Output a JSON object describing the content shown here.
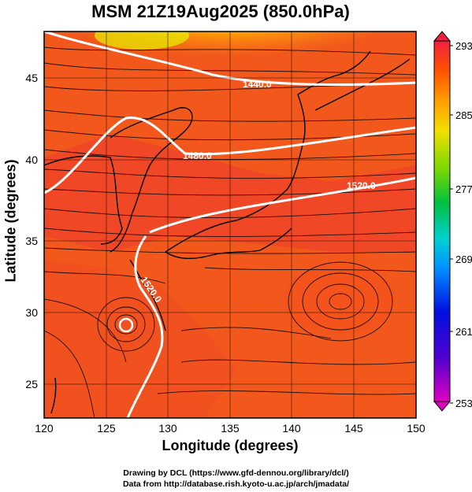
{
  "title": "MSM 21Z19Aug2025 (850.0hPa)",
  "x_axis": {
    "label": "Longitude (degrees)",
    "range": [
      120,
      150
    ],
    "ticks": [
      "120",
      "125",
      "130",
      "135",
      "140",
      "145",
      "150"
    ]
  },
  "y_axis": {
    "label": "Latitude  (degrees)",
    "range": [
      22.5,
      47.5
    ],
    "ticks": [
      "25",
      "30",
      "35",
      "40",
      "45"
    ]
  },
  "colorbar": {
    "range": [
      253,
      293
    ],
    "ticks": [
      "253",
      "261",
      "269",
      "277",
      "285",
      "293"
    ],
    "colors": [
      "#e000c0",
      "#6000d0",
      "#0020e0",
      "#0080ff",
      "#00c8ff",
      "#00d0a0",
      "#00c040",
      "#60d000",
      "#c8e000",
      "#ffe000",
      "#ffa000",
      "#ff6000",
      "#ff3000",
      "#f02040"
    ]
  },
  "contours": [
    {
      "label": "1440.0"
    },
    {
      "label": "1480.0"
    },
    {
      "label": "1520.0"
    },
    {
      "label": "1520.0"
    }
  ],
  "credits": {
    "line1": "Drawing by DCL (https://www.gfd-dennou.org/library/dcl/)",
    "line2": "Data from http://database.rish.kyoto-u.ac.jp/arch/jmadata/"
  },
  "colors": {
    "field_base": "#f05a1e",
    "field_warm": "#ee3c2a",
    "field_cool": "#ffb020",
    "contour": "#ffffff",
    "land_outline": "#000000"
  }
}
